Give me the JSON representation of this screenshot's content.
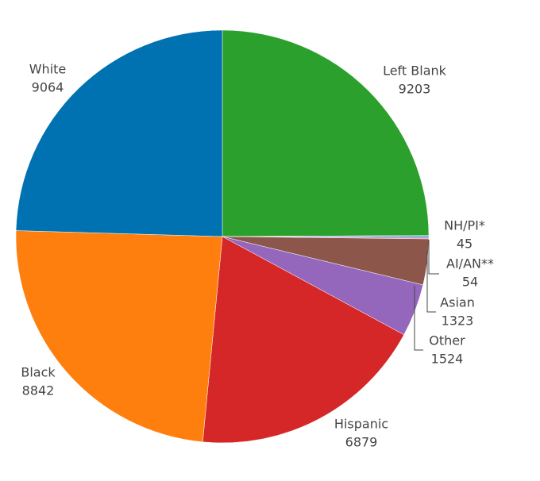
{
  "chart_data": {
    "type": "pie",
    "categories": [
      "Left Blank",
      "NH/PI*",
      "AI/AN**",
      "Asian",
      "Other",
      "Hispanic",
      "Black",
      "White"
    ],
    "values": [
      9203,
      45,
      54,
      1323,
      1524,
      6879,
      8842,
      9064
    ],
    "colors": [
      "#2ca02c",
      "#17becf",
      "#e377c2",
      "#8c564b",
      "#9467bd",
      "#d62728",
      "#ff7f0e",
      "#0072b2"
    ]
  }
}
